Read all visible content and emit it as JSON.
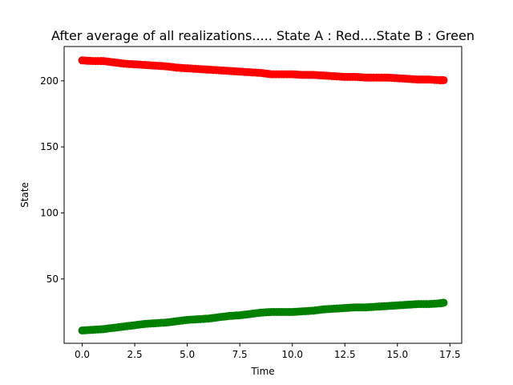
{
  "chart_data": {
    "type": "scatter",
    "title": "After average of all realizations..... State A : Red....State B : Green",
    "xlabel": "Time",
    "ylabel": "State",
    "xlim": [
      -0.86,
      18.06
    ],
    "ylim": [
      1.3,
      226.0
    ],
    "xticks": [
      0.0,
      2.5,
      5.0,
      7.5,
      10.0,
      12.5,
      15.0,
      17.5
    ],
    "xtick_labels": [
      "0.0",
      "2.5",
      "5.0",
      "7.5",
      "10.0",
      "12.5",
      "15.0",
      "17.5"
    ],
    "yticks": [
      50,
      100,
      150,
      200
    ],
    "ytick_labels": [
      "50",
      "100",
      "150",
      "200"
    ],
    "grid": false,
    "series": [
      {
        "color": "#ff0000",
        "x": [
          0.0,
          0.5,
          1.0,
          1.5,
          2.0,
          2.5,
          3.0,
          3.5,
          4.0,
          4.5,
          5.0,
          5.5,
          6.0,
          6.5,
          7.0,
          7.5,
          8.0,
          8.5,
          9.0,
          9.5,
          10.0,
          10.5,
          11.0,
          11.5,
          12.0,
          12.5,
          13.0,
          13.5,
          14.0,
          14.5,
          15.0,
          15.5,
          16.0,
          16.5,
          17.0,
          17.2
        ],
        "y": [
          215.5,
          215.0,
          215.0,
          214.0,
          213.0,
          212.5,
          212.0,
          211.5,
          211.0,
          210.0,
          209.5,
          209.0,
          208.5,
          208.0,
          207.5,
          207.0,
          206.5,
          206.0,
          205.0,
          205.0,
          205.0,
          204.5,
          204.5,
          204.0,
          203.5,
          203.0,
          203.0,
          202.5,
          202.5,
          202.5,
          202.0,
          201.5,
          201.0,
          201.0,
          200.5,
          200.5
        ]
      },
      {
        "color": "#008000",
        "x": [
          0.0,
          0.5,
          1.0,
          1.5,
          2.0,
          2.5,
          3.0,
          3.5,
          4.0,
          4.5,
          5.0,
          5.5,
          6.0,
          6.5,
          7.0,
          7.5,
          8.0,
          8.5,
          9.0,
          9.5,
          10.0,
          10.5,
          11.0,
          11.5,
          12.0,
          12.5,
          13.0,
          13.5,
          14.0,
          14.5,
          15.0,
          15.5,
          16.0,
          16.5,
          17.0,
          17.2
        ],
        "y": [
          11.0,
          11.5,
          12.0,
          13.0,
          14.0,
          15.0,
          16.0,
          16.5,
          17.0,
          18.0,
          19.0,
          19.5,
          20.0,
          21.0,
          22.0,
          22.5,
          23.5,
          24.5,
          25.0,
          25.0,
          25.0,
          25.5,
          26.0,
          27.0,
          27.5,
          28.0,
          28.5,
          28.5,
          29.0,
          29.5,
          30.0,
          30.5,
          31.0,
          31.0,
          31.5,
          32.0
        ]
      }
    ]
  }
}
